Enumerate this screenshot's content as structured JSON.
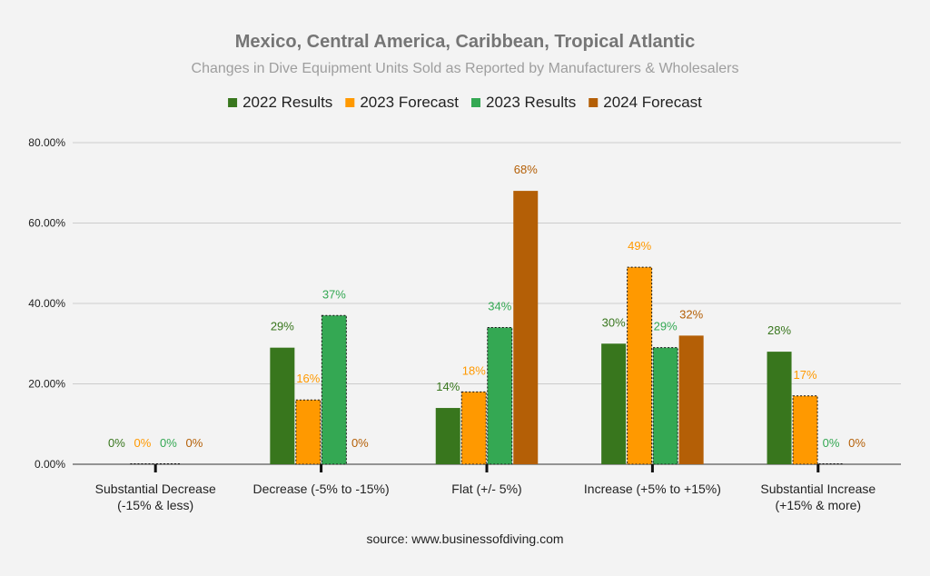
{
  "chart_data": {
    "type": "bar",
    "title": "Mexico, Central America, Caribbean, Tropical Atlantic",
    "subtitle": "Changes in Dive Equipment Units Sold as Reported by Manufacturers & Wholesalers",
    "categories": [
      [
        "Substantial Decrease",
        "(-15% & less)"
      ],
      [
        "Decrease (-5% to -15%)"
      ],
      [
        "Flat (+/- 5%)"
      ],
      [
        "Increase (+5% to +15%)"
      ],
      [
        "Substantial Increase",
        "(+15% & more)"
      ]
    ],
    "series": [
      {
        "name": "2022 Results",
        "color": "#38761d",
        "values": [
          0,
          29,
          14,
          30,
          28
        ],
        "labels": [
          "0%",
          "29%",
          "14%",
          "30%",
          "28%"
        ],
        "dashed": false
      },
      {
        "name": "2023 Forecast",
        "color": "#ff9900",
        "values": [
          0,
          16,
          18,
          49,
          17
        ],
        "labels": [
          "0%",
          "16%",
          "18%",
          "49%",
          "17%"
        ],
        "dashed": true
      },
      {
        "name": "2023 Results",
        "color": "#34a853",
        "values": [
          0,
          37,
          34,
          29,
          0
        ],
        "labels": [
          "0%",
          "37%",
          "34%",
          "29%",
          "0%"
        ],
        "dashed": true
      },
      {
        "name": "2024 Forecast",
        "color": "#b45f06",
        "values": [
          0,
          0,
          68,
          32,
          0
        ],
        "labels": [
          "0%",
          "0%",
          "68%",
          "32%",
          "0%"
        ],
        "dashed": false
      }
    ],
    "yticks": [
      "0.00%",
      "20.00%",
      "40.00%",
      "60.00%",
      "80.00%"
    ],
    "ylim": [
      0,
      80
    ],
    "grid": true,
    "legend_position": "top",
    "source": "source: www.businessofdiving.com"
  }
}
